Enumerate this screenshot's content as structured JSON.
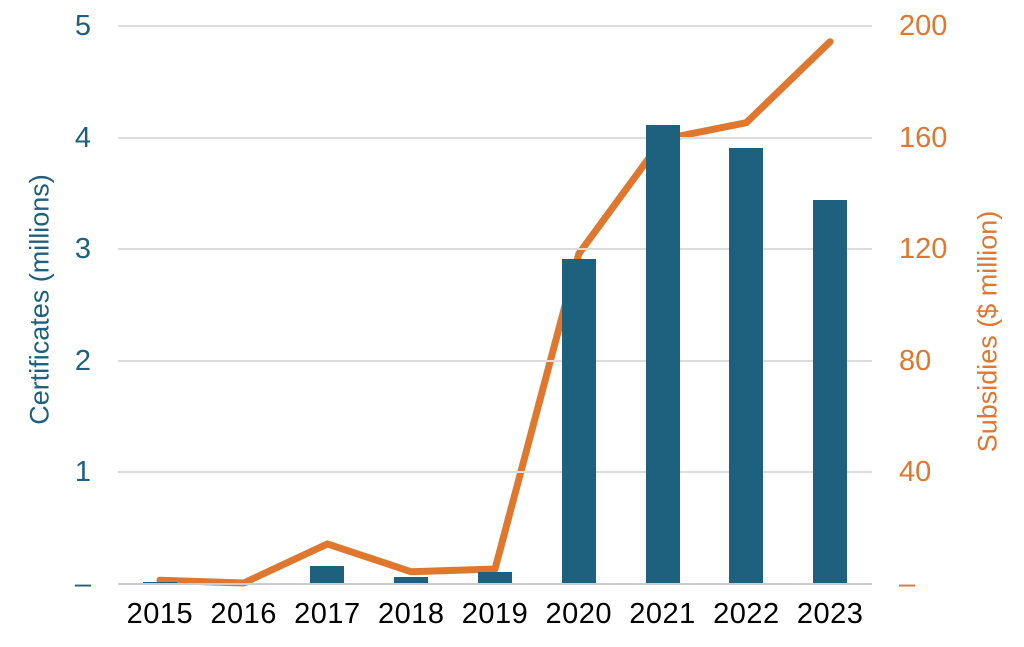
{
  "chart_data": {
    "type": "bar",
    "subtype": "combo-bar-line-dual-axis",
    "title": "",
    "categories": [
      "2015",
      "2016",
      "2017",
      "2018",
      "2019",
      "2020",
      "2021",
      "2022",
      "2023"
    ],
    "series": [
      {
        "name": "Certificates",
        "render": "bar",
        "axis": "left",
        "color": "#1d617f",
        "values": [
          0.01,
          0,
          0.15,
          0.05,
          0.1,
          2.9,
          4.1,
          3.9,
          3.43
        ]
      },
      {
        "name": "Subsidies",
        "render": "line",
        "axis": "right",
        "color": "#e0772f",
        "values": [
          1,
          0,
          14,
          4,
          5,
          118,
          159,
          165,
          194
        ]
      }
    ],
    "left_axis": {
      "label": "Certificates (millions)",
      "min": 0,
      "max": 5,
      "tick_values": [
        5,
        4,
        3,
        2,
        1,
        0
      ],
      "tick_labels": [
        "5",
        "4",
        "3",
        "2",
        "1",
        "–"
      ],
      "color": "#1d617f"
    },
    "right_axis": {
      "label": "Subsidies ($ million)",
      "min": 0,
      "max": 200,
      "tick_values": [
        200,
        160,
        120,
        80,
        40,
        0
      ],
      "tick_labels": [
        "200",
        "160",
        "120",
        "80",
        "40",
        "–"
      ],
      "color": "#e0772f"
    },
    "x_axis": {
      "color": "#000000"
    },
    "layout_hints": {
      "grid": "horizontal-only",
      "legend": "none",
      "background": "#ffffff",
      "gridline_color": "#dddddd"
    }
  }
}
